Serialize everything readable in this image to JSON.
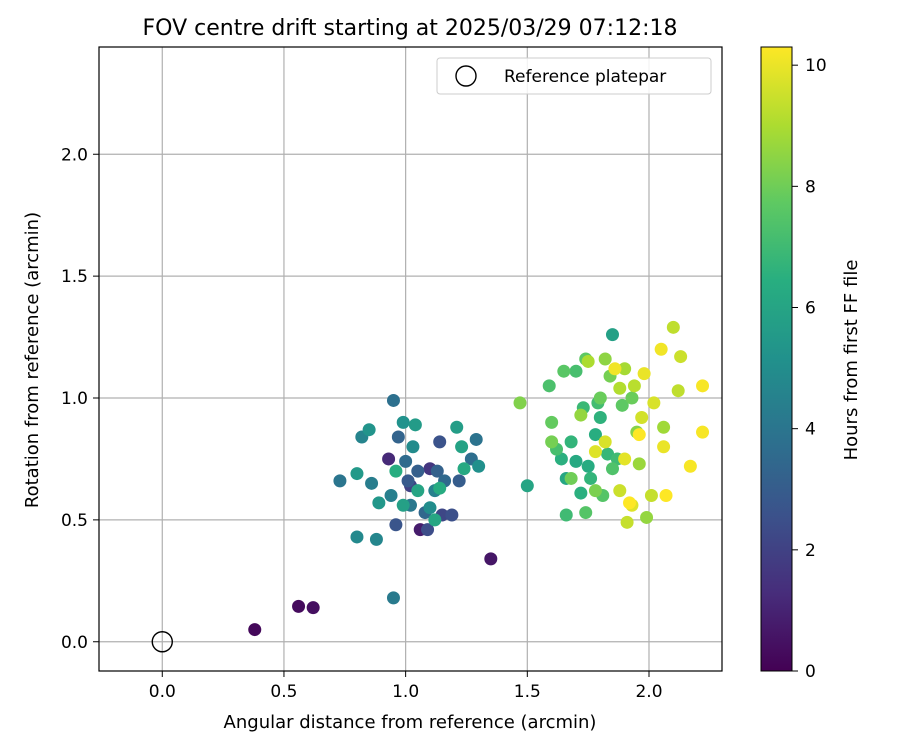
{
  "chart_data": {
    "type": "scatter",
    "title": "FOV centre drift starting at 2025/03/29 07:12:18",
    "xlabel": "Angular distance from reference (arcmin)",
    "ylabel": "Rotation from reference (arcmin)",
    "xlim": [
      -0.26,
      2.3
    ],
    "ylim": [
      -0.12,
      2.44
    ],
    "xticks": [
      0.0,
      0.5,
      1.0,
      1.5,
      2.0
    ],
    "xtick_labels": [
      "0.0",
      "0.5",
      "1.0",
      "1.5",
      "2.0"
    ],
    "yticks": [
      0.0,
      0.5,
      1.0,
      1.5,
      2.0
    ],
    "ytick_labels": [
      "0.0",
      "0.5",
      "1.0",
      "1.5",
      "2.0"
    ],
    "grid": true,
    "legend": {
      "label": "Reference platepar",
      "position": "top-right"
    },
    "reference_point": {
      "x": 0.0,
      "y": 0.0
    },
    "colorbar": {
      "label": "Hours from first FF file",
      "colormap": "viridis",
      "min": 0,
      "max": 10.3,
      "ticks": [
        0,
        2,
        4,
        6,
        8,
        10
      ],
      "tick_labels": [
        "0",
        "2",
        "4",
        "6",
        "8",
        "10"
      ]
    },
    "series": [
      {
        "name": "FOV centre drift",
        "points": [
          {
            "x": 0.38,
            "y": 0.05,
            "h": 0.2
          },
          {
            "x": 0.56,
            "y": 0.145,
            "h": 0.3
          },
          {
            "x": 0.62,
            "y": 0.14,
            "h": 0.4
          },
          {
            "x": 1.35,
            "y": 0.34,
            "h": 0.6
          },
          {
            "x": 1.06,
            "y": 0.46,
            "h": 0.8
          },
          {
            "x": 0.93,
            "y": 0.75,
            "h": 1.2
          },
          {
            "x": 1.1,
            "y": 0.71,
            "h": 1.6
          },
          {
            "x": 1.02,
            "y": 0.64,
            "h": 2.0
          },
          {
            "x": 1.15,
            "y": 0.52,
            "h": 2.2
          },
          {
            "x": 1.09,
            "y": 0.46,
            "h": 2.4
          },
          {
            "x": 1.19,
            "y": 0.52,
            "h": 2.5
          },
          {
            "x": 1.14,
            "y": 0.82,
            "h": 2.6
          },
          {
            "x": 0.96,
            "y": 0.48,
            "h": 2.7
          },
          {
            "x": 1.01,
            "y": 0.66,
            "h": 2.9
          },
          {
            "x": 1.22,
            "y": 0.66,
            "h": 3.0
          },
          {
            "x": 1.05,
            "y": 0.7,
            "h": 3.1
          },
          {
            "x": 1.13,
            "y": 0.7,
            "h": 3.2
          },
          {
            "x": 0.97,
            "y": 0.84,
            "h": 3.3
          },
          {
            "x": 1.08,
            "y": 0.53,
            "h": 3.4
          },
          {
            "x": 1.16,
            "y": 0.66,
            "h": 3.5
          },
          {
            "x": 1.0,
            "y": 0.74,
            "h": 3.6
          },
          {
            "x": 1.27,
            "y": 0.75,
            "h": 3.7
          },
          {
            "x": 0.95,
            "y": 0.99,
            "h": 3.8
          },
          {
            "x": 1.29,
            "y": 0.83,
            "h": 3.9
          },
          {
            "x": 0.73,
            "y": 0.66,
            "h": 4.0
          },
          {
            "x": 1.02,
            "y": 0.56,
            "h": 4.1
          },
          {
            "x": 0.95,
            "y": 0.18,
            "h": 4.2
          },
          {
            "x": 0.86,
            "y": 0.65,
            "h": 4.3
          },
          {
            "x": 0.94,
            "y": 0.6,
            "h": 4.4
          },
          {
            "x": 1.12,
            "y": 0.62,
            "h": 4.5
          },
          {
            "x": 0.82,
            "y": 0.84,
            "h": 4.6
          },
          {
            "x": 0.88,
            "y": 0.42,
            "h": 4.7
          },
          {
            "x": 0.8,
            "y": 0.43,
            "h": 4.8
          },
          {
            "x": 1.03,
            "y": 0.8,
            "h": 4.9
          },
          {
            "x": 1.1,
            "y": 0.55,
            "h": 5.0
          },
          {
            "x": 1.3,
            "y": 0.72,
            "h": 5.1
          },
          {
            "x": 0.99,
            "y": 0.9,
            "h": 5.2
          },
          {
            "x": 0.85,
            "y": 0.87,
            "h": 5.3
          },
          {
            "x": 0.89,
            "y": 0.57,
            "h": 5.4
          },
          {
            "x": 0.8,
            "y": 0.69,
            "h": 5.5
          },
          {
            "x": 1.04,
            "y": 0.89,
            "h": 5.6
          },
          {
            "x": 1.21,
            "y": 0.88,
            "h": 5.7
          },
          {
            "x": 0.99,
            "y": 0.56,
            "h": 5.8
          },
          {
            "x": 1.23,
            "y": 0.8,
            "h": 5.9
          },
          {
            "x": 1.05,
            "y": 0.62,
            "h": 6.0
          },
          {
            "x": 1.12,
            "y": 0.5,
            "h": 6.1
          },
          {
            "x": 1.24,
            "y": 0.71,
            "h": 6.2
          },
          {
            "x": 1.14,
            "y": 0.63,
            "h": 6.3
          },
          {
            "x": 0.96,
            "y": 0.7,
            "h": 6.4
          },
          {
            "x": 1.5,
            "y": 0.64,
            "h": 6.0
          },
          {
            "x": 1.85,
            "y": 1.26,
            "h": 5.8
          },
          {
            "x": 1.66,
            "y": 0.67,
            "h": 6.1
          },
          {
            "x": 1.7,
            "y": 0.74,
            "h": 6.2
          },
          {
            "x": 1.75,
            "y": 0.72,
            "h": 6.3
          },
          {
            "x": 1.78,
            "y": 0.85,
            "h": 6.4
          },
          {
            "x": 1.72,
            "y": 0.61,
            "h": 6.5
          },
          {
            "x": 1.64,
            "y": 0.75,
            "h": 6.5
          },
          {
            "x": 1.8,
            "y": 0.92,
            "h": 6.6
          },
          {
            "x": 1.76,
            "y": 0.67,
            "h": 6.7
          },
          {
            "x": 1.68,
            "y": 0.82,
            "h": 6.7
          },
          {
            "x": 1.83,
            "y": 0.77,
            "h": 6.8
          },
          {
            "x": 1.73,
            "y": 0.96,
            "h": 6.9
          },
          {
            "x": 1.87,
            "y": 0.75,
            "h": 7.0
          },
          {
            "x": 1.66,
            "y": 0.52,
            "h": 7.0
          },
          {
            "x": 1.79,
            "y": 0.98,
            "h": 7.1
          },
          {
            "x": 1.7,
            "y": 1.11,
            "h": 7.2
          },
          {
            "x": 1.62,
            "y": 0.79,
            "h": 7.2
          },
          {
            "x": 1.59,
            "y": 1.05,
            "h": 7.3
          },
          {
            "x": 1.85,
            "y": 0.71,
            "h": 7.4
          },
          {
            "x": 1.74,
            "y": 0.53,
            "h": 7.5
          },
          {
            "x": 1.81,
            "y": 0.6,
            "h": 7.5
          },
          {
            "x": 1.65,
            "y": 1.11,
            "h": 7.6
          },
          {
            "x": 1.74,
            "y": 1.16,
            "h": 7.7
          },
          {
            "x": 1.89,
            "y": 0.97,
            "h": 7.7
          },
          {
            "x": 1.6,
            "y": 0.9,
            "h": 7.8
          },
          {
            "x": 1.93,
            "y": 1.0,
            "h": 7.9
          },
          {
            "x": 1.8,
            "y": 1.0,
            "h": 7.9
          },
          {
            "x": 1.68,
            "y": 0.67,
            "h": 8.0
          },
          {
            "x": 1.84,
            "y": 1.09,
            "h": 8.1
          },
          {
            "x": 1.6,
            "y": 0.82,
            "h": 8.1
          },
          {
            "x": 1.78,
            "y": 0.62,
            "h": 8.2
          },
          {
            "x": 1.47,
            "y": 0.98,
            "h": 8.3
          },
          {
            "x": 1.95,
            "y": 0.86,
            "h": 8.4
          },
          {
            "x": 1.82,
            "y": 1.16,
            "h": 8.5
          },
          {
            "x": 1.99,
            "y": 0.51,
            "h": 8.6
          },
          {
            "x": 1.72,
            "y": 0.93,
            "h": 8.6
          },
          {
            "x": 1.96,
            "y": 0.73,
            "h": 8.7
          },
          {
            "x": 2.06,
            "y": 0.88,
            "h": 8.8
          },
          {
            "x": 1.9,
            "y": 1.12,
            "h": 8.9
          },
          {
            "x": 1.75,
            "y": 1.15,
            "h": 9.0
          },
          {
            "x": 1.88,
            "y": 1.04,
            "h": 9.1
          },
          {
            "x": 1.94,
            "y": 1.05,
            "h": 9.2
          },
          {
            "x": 2.1,
            "y": 1.29,
            "h": 9.3
          },
          {
            "x": 2.12,
            "y": 1.03,
            "h": 9.3
          },
          {
            "x": 1.91,
            "y": 0.49,
            "h": 9.4
          },
          {
            "x": 2.01,
            "y": 0.6,
            "h": 9.4
          },
          {
            "x": 2.13,
            "y": 1.17,
            "h": 9.5
          },
          {
            "x": 1.88,
            "y": 0.62,
            "h": 9.5
          },
          {
            "x": 1.97,
            "y": 0.92,
            "h": 9.6
          },
          {
            "x": 1.82,
            "y": 0.82,
            "h": 9.7
          },
          {
            "x": 2.02,
            "y": 0.98,
            "h": 9.7
          },
          {
            "x": 1.78,
            "y": 0.78,
            "h": 9.8
          },
          {
            "x": 1.93,
            "y": 0.56,
            "h": 9.8
          },
          {
            "x": 1.9,
            "y": 0.75,
            "h": 9.9
          },
          {
            "x": 2.06,
            "y": 0.8,
            "h": 10.0
          },
          {
            "x": 1.98,
            "y": 1.1,
            "h": 10.0
          },
          {
            "x": 1.86,
            "y": 1.12,
            "h": 10.1
          },
          {
            "x": 2.05,
            "y": 1.2,
            "h": 10.1
          },
          {
            "x": 2.22,
            "y": 1.05,
            "h": 10.2
          },
          {
            "x": 2.17,
            "y": 0.72,
            "h": 10.2
          },
          {
            "x": 2.22,
            "y": 0.86,
            "h": 10.2
          },
          {
            "x": 2.07,
            "y": 0.6,
            "h": 10.3
          },
          {
            "x": 1.96,
            "y": 0.85,
            "h": 10.3
          },
          {
            "x": 1.92,
            "y": 0.57,
            "h": 10.3
          }
        ]
      }
    ]
  }
}
